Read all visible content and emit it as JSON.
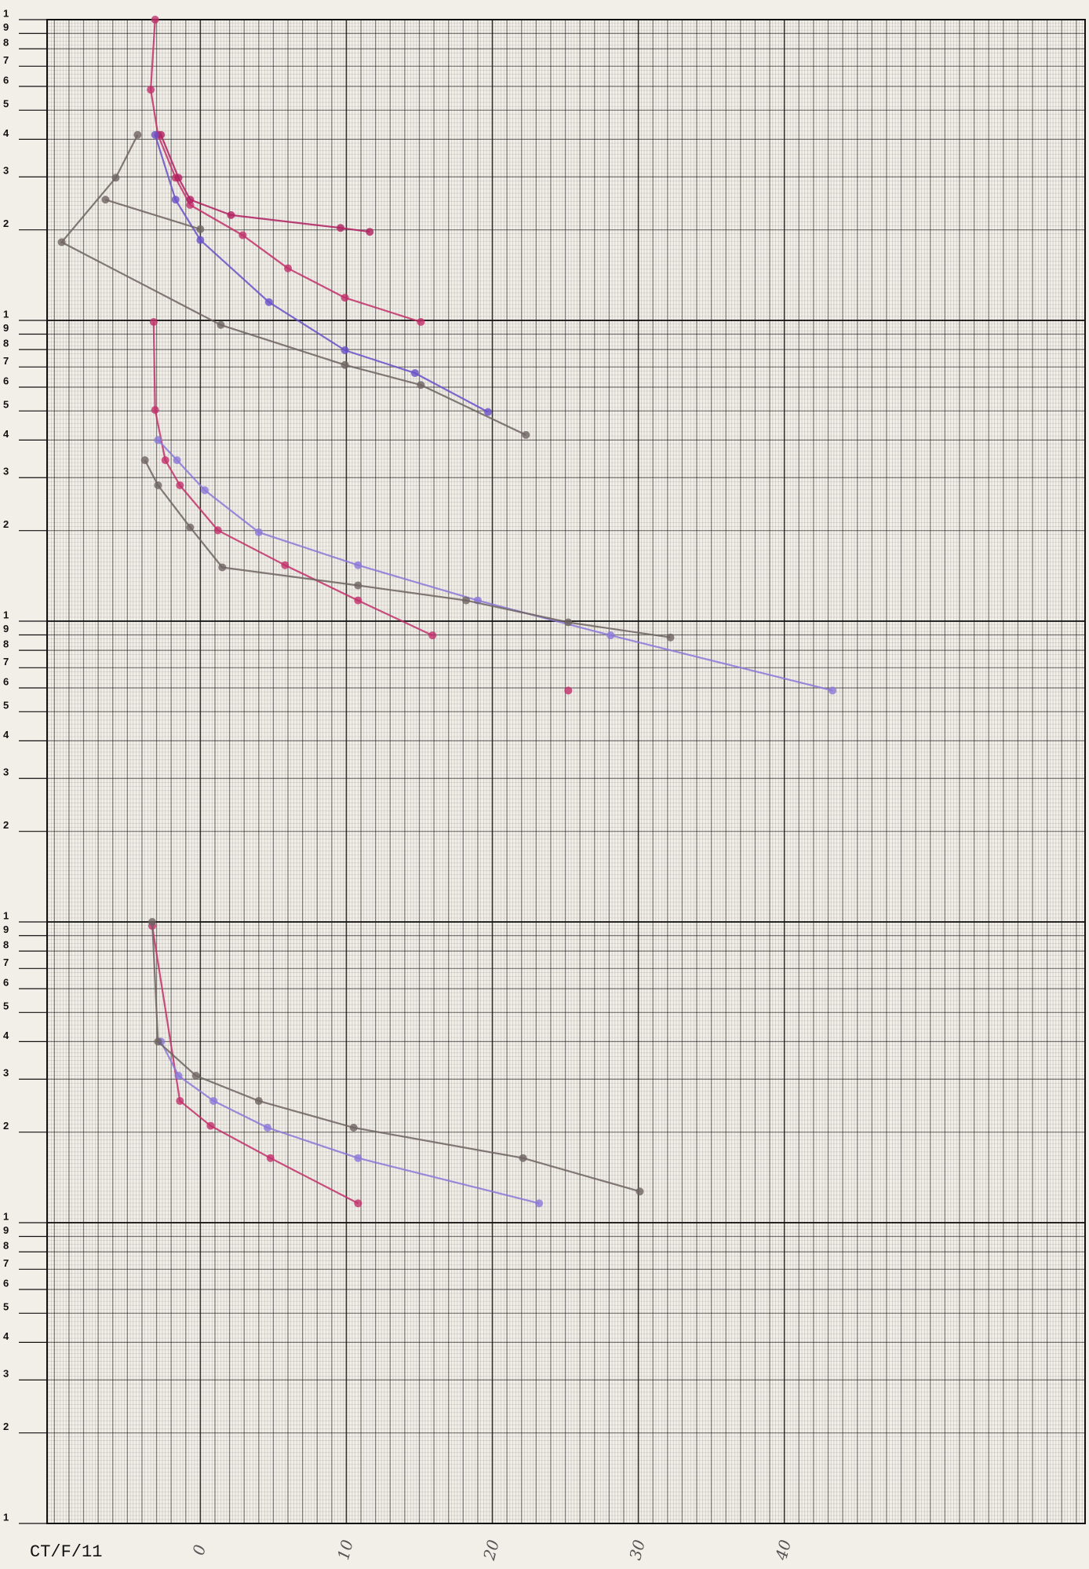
{
  "chart_data": {
    "type": "line",
    "note": "CT/F/11",
    "log_y": true,
    "grid": true,
    "xlim": [
      -10.5,
      60.6
    ],
    "ylim": [
      1,
      100000
    ],
    "xticks": [
      0,
      10,
      20,
      30,
      40
    ],
    "yticks": [
      1,
      2,
      3,
      4,
      5,
      6,
      7,
      8,
      9,
      {
        "value": 10,
        "label": "1"
      },
      {
        "value": 20,
        "label": "2"
      },
      {
        "value": 30,
        "label": "3"
      },
      {
        "value": 40,
        "label": "4"
      },
      {
        "value": 50,
        "label": "5"
      },
      {
        "value": 60,
        "label": "6"
      },
      {
        "value": 70,
        "label": "7"
      },
      {
        "value": 80,
        "label": "8"
      },
      {
        "value": 90,
        "label": "9"
      },
      {
        "value": 100,
        "label": "1"
      },
      {
        "value": 200,
        "label": "2"
      },
      {
        "value": 300,
        "label": "3"
      },
      {
        "value": 400,
        "label": "4"
      },
      {
        "value": 500,
        "label": "5"
      },
      {
        "value": 600,
        "label": "6"
      },
      {
        "value": 700,
        "label": "7"
      },
      {
        "value": 800,
        "label": "8"
      },
      {
        "value": 900,
        "label": "9"
      },
      {
        "value": 1000,
        "label": "1"
      },
      {
        "value": 2000,
        "label": "2"
      },
      {
        "value": 3000,
        "label": "3"
      },
      {
        "value": 4000,
        "label": "4"
      },
      {
        "value": 5000,
        "label": "5"
      },
      {
        "value": 6000,
        "label": "6"
      },
      {
        "value": 7000,
        "label": "7"
      },
      {
        "value": 8000,
        "label": "8"
      },
      {
        "value": 9000,
        "label": "9"
      },
      {
        "value": 10000,
        "label": "1"
      },
      {
        "value": 20000,
        "label": "2"
      },
      {
        "value": 30000,
        "label": "3"
      },
      {
        "value": 40000,
        "label": "4"
      },
      {
        "value": 50000,
        "label": "5"
      },
      {
        "value": 60000,
        "label": "6"
      },
      {
        "value": 70000,
        "label": "7"
      },
      {
        "value": 80000,
        "label": "8"
      },
      {
        "value": 90000,
        "label": "9"
      },
      {
        "value": 100000,
        "label": "1"
      }
    ],
    "series": [
      {
        "color": "#c2306a",
        "x": [
          -3.3,
          -1.4,
          0.7,
          4.8,
          10.8
        ],
        "values": [
          97,
          25.4,
          21,
          16.4,
          11.6
        ]
      },
      {
        "color": "#8a78d8",
        "x": [
          -2.7,
          -1.5,
          0.9,
          4.6,
          10.8,
          23.2
        ],
        "values": [
          40,
          30.8,
          25.4,
          20.7,
          16.4,
          11.6
        ]
      },
      {
        "color": "#6e6462",
        "x": [
          -3.3,
          -2.9,
          -0.3,
          4.0,
          10.5,
          22.1,
          30.1
        ],
        "values": [
          100,
          40,
          30.8,
          25.4,
          20.7,
          16.4,
          12.7
        ]
      },
      {
        "color": "#c2306a",
        "x": [
          -3.2,
          -3.1,
          -2.4,
          -1.4,
          1.2,
          5.8,
          10.8,
          15.9
        ],
        "values": [
          9880,
          5035,
          3430,
          2830,
          2005,
          1535,
          1172,
          897
        ]
      },
      {
        "color": "#c2306a",
        "x": [
          25.2
        ],
        "values": [
          588
        ]
      },
      {
        "color": "#8a78d8",
        "x": [
          -2.9,
          -1.6,
          0.3,
          4.0,
          10.8,
          19.0,
          28.1,
          43.3
        ],
        "values": [
          4000,
          3430,
          2725,
          1975,
          1535,
          1172,
          897,
          588
        ]
      },
      {
        "color": "#6e6462",
        "x": [
          -3.8,
          -2.9,
          -0.7,
          1.5,
          10.8,
          18.2,
          25.2,
          32.2
        ],
        "values": [
          3430,
          2830,
          2050,
          1510,
          1315,
          1172,
          991,
          883
        ]
      },
      {
        "color": "#c2306a",
        "x": [
          -3.1,
          -3.4,
          -2.9,
          -1.7,
          -0.7,
          2.9,
          6.0,
          9.9,
          15.1
        ],
        "values": [
          100000,
          58500,
          41400,
          29800,
          24200,
          19200,
          14900,
          11900,
          9880
        ]
      },
      {
        "color": "#b02060",
        "x": [
          -2.7,
          -1.5,
          -0.7,
          2.1,
          9.6,
          11.6
        ],
        "values": [
          41400,
          29800,
          25200,
          22400,
          20300,
          19700
        ]
      },
      {
        "color": "#6a50c8",
        "x": [
          -3.1,
          -1.7,
          0,
          4.7,
          9.9,
          14.7,
          19.7
        ],
        "values": [
          41400,
          25200,
          18500,
          11500,
          7960,
          6680,
          4960
        ]
      },
      {
        "color": "#6e6462",
        "x": [
          -4.3,
          -5.8,
          -9.5,
          1.4,
          9.9,
          15.1,
          22.3
        ],
        "values": [
          41400,
          29800,
          18200,
          9660,
          7110,
          6100,
          4160
        ]
      },
      {
        "color": "#6e6462",
        "x": [
          -6.5,
          0
        ],
        "values": [
          25200,
          20100
        ]
      }
    ]
  }
}
